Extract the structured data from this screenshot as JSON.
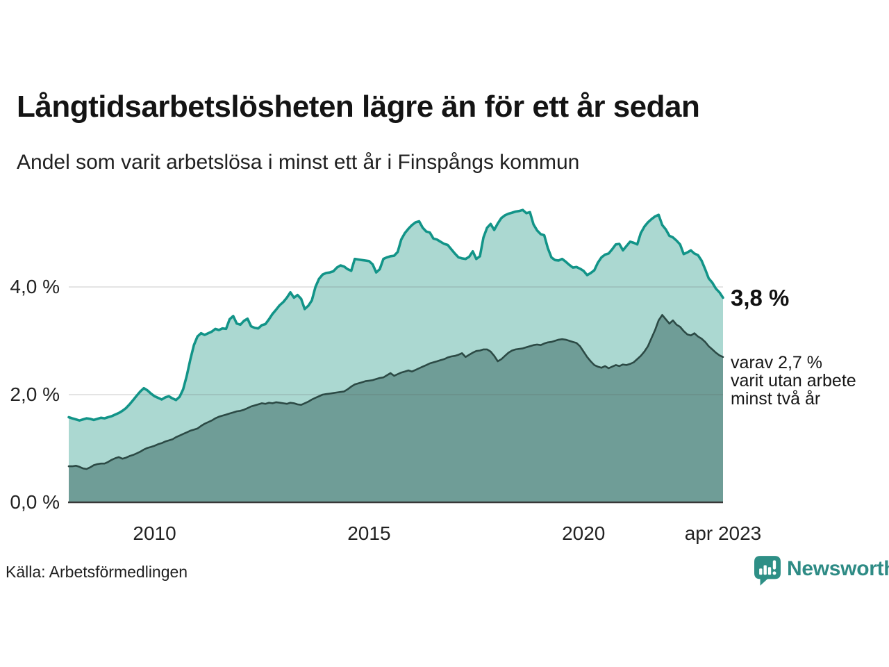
{
  "header": {
    "title": "Långtidsarbetslösheten lägre än för ett år sedan",
    "subtitle": "Andel som varit arbetslösa i minst ett år i Finspångs kommun"
  },
  "footer": {
    "source": "Källa: Arbetsförmedlingen",
    "brand": "Newsworthy"
  },
  "colors": {
    "line_1yr": "#129488",
    "fill_1yr": "#abd8d1",
    "line_2yr": "#2c4a45",
    "fill_2yr": "#6f9d97",
    "gridline": "rgba(90,90,90,0.22)",
    "baseline": "#383838",
    "brand_teal": "#2e8b85"
  },
  "chart_data": {
    "type": "area",
    "title": "Långtidsarbetslösheten lägre än för ett år sedan",
    "subtitle": "Andel som varit arbetslösa i minst ett år i Finspångs kommun",
    "unit": "%",
    "frequency": "monthly",
    "x_start": "2008-01",
    "x_end": "2023-04",
    "ylim": [
      0,
      5.8
    ],
    "grid": true,
    "legend": "none",
    "y_ticks": [
      {
        "label": "0,0 %",
        "value": 0
      },
      {
        "label": "2,0 %",
        "value": 2
      },
      {
        "label": "4,0 %",
        "value": 4
      }
    ],
    "x_ticks": [
      {
        "label": "2010",
        "index": 24
      },
      {
        "label": "2015",
        "index": 84
      },
      {
        "label": "2020",
        "index": 144
      },
      {
        "label": "apr 2023",
        "index": 183
      }
    ],
    "series": [
      {
        "name": "Andel arbetslösa minst ett år",
        "color": "#129488",
        "fill": "#abd8d1",
        "end_value": "3,8 %",
        "values": [
          1.58,
          1.56,
          1.54,
          1.52,
          1.54,
          1.56,
          1.55,
          1.53,
          1.55,
          1.57,
          1.56,
          1.58,
          1.6,
          1.63,
          1.66,
          1.7,
          1.75,
          1.82,
          1.9,
          1.98,
          2.06,
          2.12,
          2.08,
          2.02,
          1.97,
          1.94,
          1.91,
          1.95,
          1.97,
          1.93,
          1.9,
          1.96,
          2.1,
          2.35,
          2.65,
          2.92,
          3.08,
          3.14,
          3.11,
          3.14,
          3.17,
          3.22,
          3.2,
          3.23,
          3.22,
          3.4,
          3.46,
          3.32,
          3.3,
          3.37,
          3.41,
          3.27,
          3.24,
          3.23,
          3.29,
          3.31,
          3.4,
          3.5,
          3.58,
          3.66,
          3.72,
          3.8,
          3.9,
          3.8,
          3.85,
          3.78,
          3.59,
          3.65,
          3.75,
          4.0,
          4.15,
          4.23,
          4.26,
          4.27,
          4.29,
          4.36,
          4.4,
          4.38,
          4.33,
          4.3,
          4.52,
          4.51,
          4.5,
          4.49,
          4.48,
          4.42,
          4.27,
          4.33,
          4.52,
          4.55,
          4.57,
          4.58,
          4.65,
          4.88,
          5.0,
          5.08,
          5.15,
          5.2,
          5.22,
          5.1,
          5.03,
          5.01,
          4.9,
          4.88,
          4.84,
          4.8,
          4.78,
          4.7,
          4.62,
          4.55,
          4.53,
          4.52,
          4.56,
          4.66,
          4.52,
          4.57,
          4.92,
          5.1,
          5.17,
          5.06,
          5.18,
          5.28,
          5.33,
          5.36,
          5.38,
          5.4,
          5.41,
          5.43,
          5.37,
          5.39,
          5.16,
          5.05,
          4.98,
          4.96,
          4.72,
          4.55,
          4.5,
          4.49,
          4.52,
          4.47,
          4.41,
          4.36,
          4.37,
          4.34,
          4.3,
          4.22,
          4.26,
          4.31,
          4.45,
          4.55,
          4.6,
          4.62,
          4.7,
          4.79,
          4.8,
          4.68,
          4.76,
          4.84,
          4.82,
          4.79,
          5.0,
          5.12,
          5.2,
          5.26,
          5.31,
          5.34,
          5.15,
          5.07,
          4.95,
          4.92,
          4.86,
          4.79,
          4.61,
          4.64,
          4.68,
          4.62,
          4.59,
          4.49,
          4.33,
          4.16,
          4.08,
          3.97,
          3.9,
          3.8
        ]
      },
      {
        "name": "varav utan arbete minst två år",
        "color": "#2c4a45",
        "fill": "#6f9d97",
        "end_value": "2,7 %",
        "values": [
          0.67,
          0.67,
          0.68,
          0.66,
          0.63,
          0.62,
          0.65,
          0.69,
          0.71,
          0.72,
          0.72,
          0.75,
          0.79,
          0.82,
          0.84,
          0.81,
          0.83,
          0.86,
          0.88,
          0.91,
          0.94,
          0.98,
          1.01,
          1.03,
          1.05,
          1.08,
          1.1,
          1.13,
          1.15,
          1.17,
          1.21,
          1.24,
          1.27,
          1.3,
          1.33,
          1.35,
          1.37,
          1.42,
          1.46,
          1.49,
          1.52,
          1.56,
          1.59,
          1.61,
          1.63,
          1.65,
          1.67,
          1.69,
          1.7,
          1.72,
          1.75,
          1.78,
          1.8,
          1.82,
          1.84,
          1.83,
          1.85,
          1.84,
          1.86,
          1.85,
          1.84,
          1.83,
          1.85,
          1.84,
          1.82,
          1.81,
          1.84,
          1.87,
          1.91,
          1.94,
          1.97,
          2.0,
          2.01,
          2.02,
          2.03,
          2.04,
          2.05,
          2.06,
          2.1,
          2.15,
          2.19,
          2.21,
          2.23,
          2.25,
          2.26,
          2.27,
          2.29,
          2.31,
          2.32,
          2.36,
          2.4,
          2.35,
          2.38,
          2.41,
          2.43,
          2.45,
          2.43,
          2.46,
          2.49,
          2.52,
          2.55,
          2.58,
          2.6,
          2.62,
          2.64,
          2.66,
          2.69,
          2.71,
          2.72,
          2.74,
          2.77,
          2.7,
          2.74,
          2.78,
          2.81,
          2.82,
          2.84,
          2.84,
          2.8,
          2.72,
          2.62,
          2.66,
          2.72,
          2.78,
          2.82,
          2.84,
          2.85,
          2.86,
          2.88,
          2.9,
          2.92,
          2.93,
          2.92,
          2.95,
          2.97,
          2.98,
          3.0,
          3.02,
          3.03,
          3.02,
          3.0,
          2.98,
          2.96,
          2.9,
          2.8,
          2.7,
          2.62,
          2.55,
          2.52,
          2.5,
          2.53,
          2.49,
          2.52,
          2.55,
          2.53,
          2.56,
          2.55,
          2.57,
          2.6,
          2.66,
          2.72,
          2.8,
          2.9,
          3.05,
          3.2,
          3.38,
          3.48,
          3.4,
          3.32,
          3.38,
          3.3,
          3.26,
          3.18,
          3.12,
          3.1,
          3.14,
          3.08,
          3.04,
          2.98,
          2.9,
          2.84,
          2.78,
          2.73,
          2.7
        ]
      }
    ],
    "annotations": {
      "end_value_label": "3,8 %",
      "secondary_label_lines": [
        "varav 2,7 %",
        "varit utan arbete",
        "minst två år"
      ]
    }
  }
}
